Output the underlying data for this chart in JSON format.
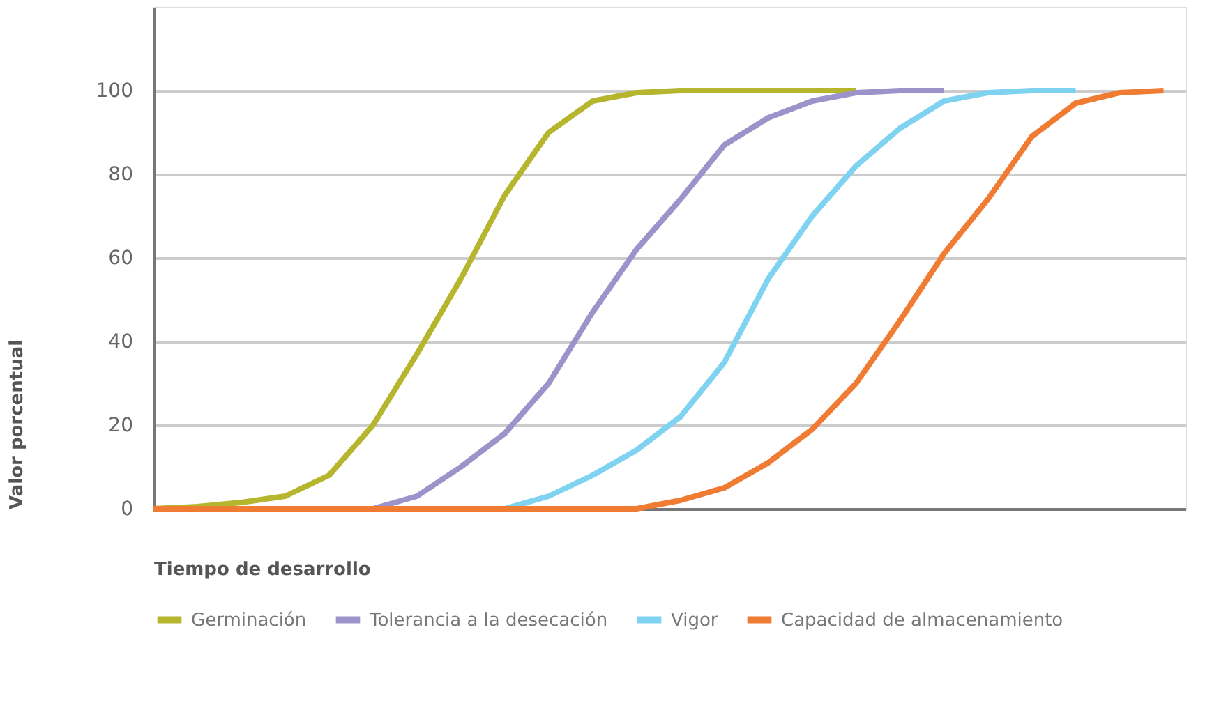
{
  "chart_data": {
    "type": "line",
    "xlabel": "Tiempo de desarrollo",
    "ylabel": "Valor porcentual",
    "categories": [
      null,
      null,
      null,
      null,
      null,
      null,
      null,
      null,
      null,
      null,
      null,
      null,
      null,
      null,
      null,
      null,
      null,
      null,
      null,
      null,
      null,
      null,
      null,
      null
    ],
    "ylim": [
      0,
      120
    ],
    "yticks": [
      0,
      20,
      40,
      60,
      80,
      100
    ],
    "grid": "y",
    "legend": "bottom",
    "marker": "none",
    "line_style": "solid",
    "series": [
      {
        "name": "Germinación",
        "color": "#b5b52e",
        "values": [
          0,
          0.5,
          1.5,
          3,
          8,
          20,
          37,
          55,
          75,
          90,
          97.5,
          99.5,
          100,
          100,
          100,
          100,
          100,
          null,
          null,
          null,
          null,
          null,
          null,
          null
        ]
      },
      {
        "name": "Tolerancia a la desecación",
        "color": "#9b93c9",
        "values": [
          null,
          null,
          null,
          null,
          null,
          0,
          3,
          10,
          18,
          30,
          47,
          62,
          74,
          87,
          93.5,
          97.5,
          99.5,
          100,
          100,
          null,
          null,
          null,
          null,
          null
        ]
      },
      {
        "name": "Vigor",
        "color": "#7fd3f0",
        "values": [
          null,
          null,
          null,
          null,
          null,
          null,
          null,
          null,
          0,
          3,
          8,
          14,
          22,
          35,
          55,
          70,
          82,
          91,
          97.5,
          99.5,
          100,
          100,
          null,
          null
        ]
      },
      {
        "name": "Capacidad de almacenamiento",
        "color": "#f07b33",
        "values": [
          0,
          0,
          0,
          0,
          0,
          0,
          0,
          0,
          0,
          0,
          0,
          0,
          2,
          5,
          11,
          19,
          30,
          45,
          61,
          74,
          89,
          97,
          99.5,
          100
        ]
      }
    ]
  }
}
